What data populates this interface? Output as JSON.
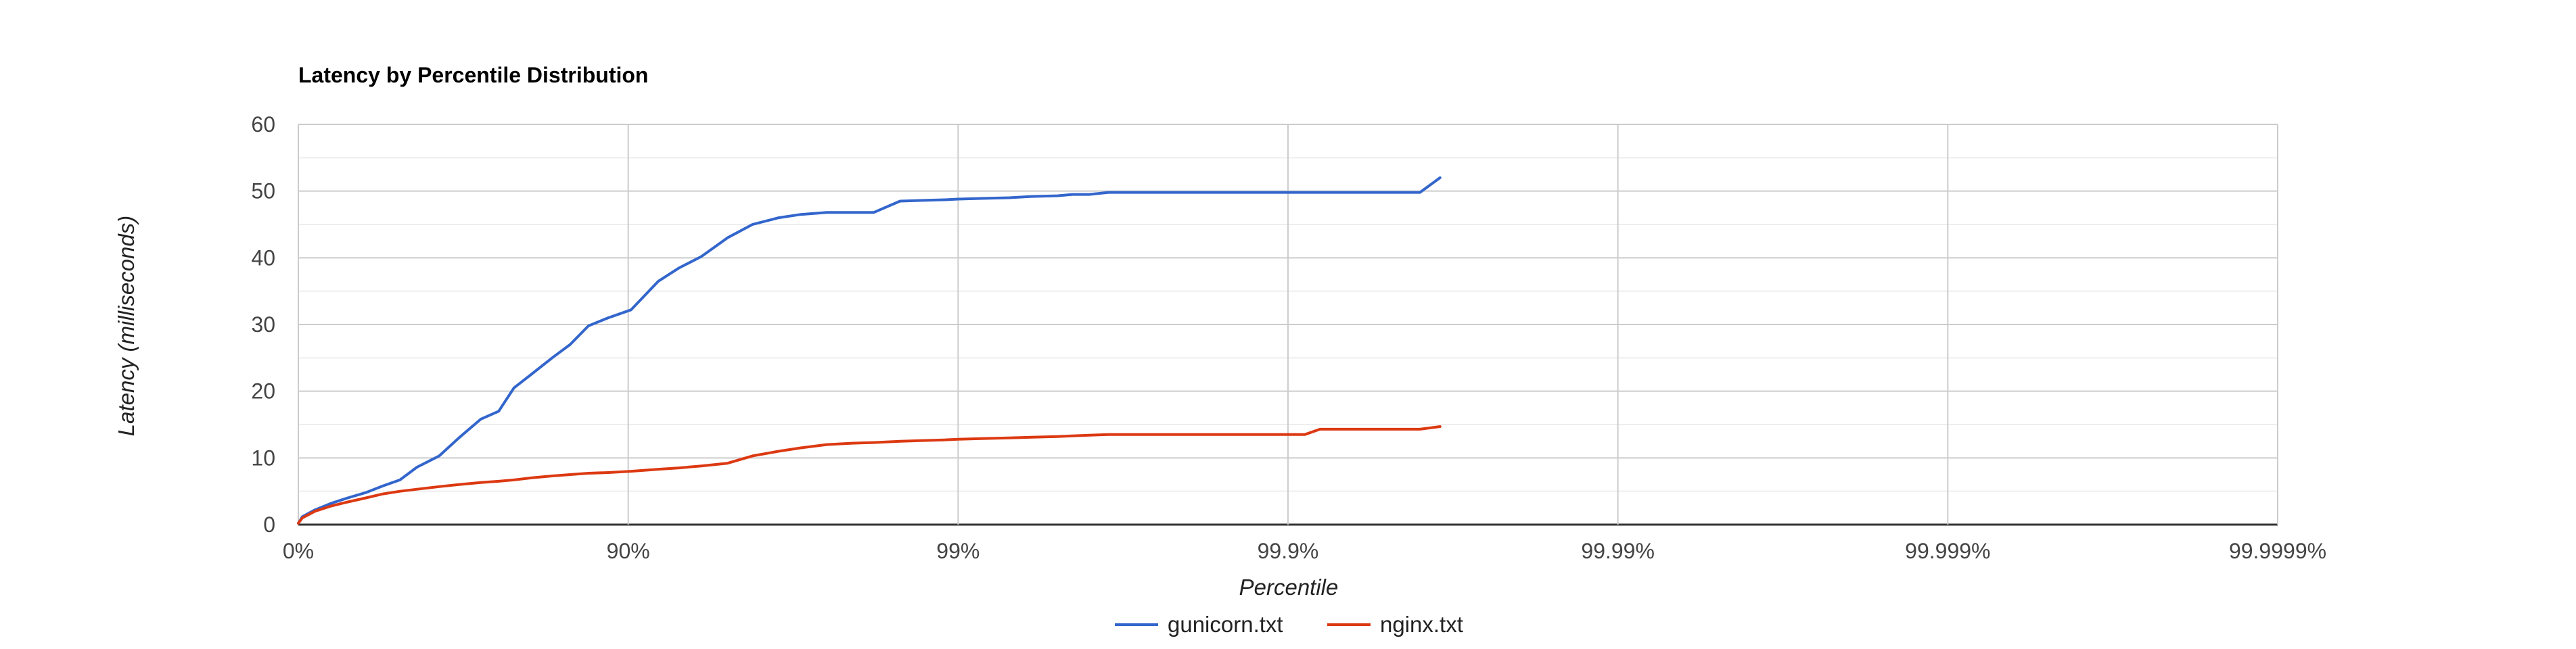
{
  "chart_data": {
    "type": "line",
    "title": "Latency by Percentile Distribution",
    "xlabel": "Percentile",
    "ylabel": "Latency (milliseconds)",
    "x_scale": "log-nines",
    "x_ticks": [
      {
        "value": 0,
        "label": "0%"
      },
      {
        "value": 90,
        "label": "90%"
      },
      {
        "value": 99,
        "label": "99%"
      },
      {
        "value": 99.9,
        "label": "99.9%"
      },
      {
        "value": 99.99,
        "label": "99.99%"
      },
      {
        "value": 99.999,
        "label": "99.999%"
      },
      {
        "value": 99.9999,
        "label": "99.9999%"
      }
    ],
    "y_ticks": [
      0,
      10,
      20,
      30,
      40,
      50,
      60
    ],
    "ylim": [
      0,
      60
    ],
    "grid": true,
    "legend": "bottom",
    "series": [
      {
        "name": "gunicorn.txt",
        "color": "#3366cc",
        "x": [
          0,
          2.8,
          10.9,
          20.6,
          29.2,
          37.6,
          44.6,
          50.8,
          56.3,
          62.6,
          67.4,
          72.0,
          75.3,
          77.8,
          80.3,
          83.0,
          85.0,
          86.8,
          88.5,
          90.2,
          91.9,
          93.0,
          94.0,
          95.0,
          95.8,
          96.5,
          97.0,
          97.5,
          97.9,
          98.2,
          98.5,
          98.7,
          98.9,
          99.0,
          99.15,
          99.3,
          99.4,
          99.5,
          99.55,
          99.6,
          99.65,
          99.7,
          99.75,
          99.8,
          99.82,
          99.84,
          99.86,
          99.87,
          99.88,
          99.9,
          99.911,
          99.92,
          99.93,
          99.94,
          99.948,
          99.955,
          99.9602,
          99.9654
        ],
        "y": [
          0.2,
          1.2,
          2.2,
          3.2,
          4.0,
          4.8,
          5.8,
          6.7,
          8.6,
          10.3,
          13.0,
          15.8,
          17.0,
          20.5,
          22.5,
          25.0,
          27.0,
          29.8,
          31.0,
          32.2,
          36.5,
          38.5,
          40.2,
          43.0,
          45.0,
          46.0,
          46.5,
          46.8,
          46.8,
          46.8,
          48.5,
          48.6,
          48.7,
          48.8,
          48.9,
          49.0,
          49.2,
          49.3,
          49.5,
          49.5,
          49.8,
          49.8,
          49.8,
          49.8,
          49.8,
          49.8,
          49.8,
          49.8,
          49.8,
          49.8,
          49.8,
          49.8,
          49.8,
          49.8,
          49.8,
          49.8,
          49.8,
          52.0
        ]
      },
      {
        "name": "nginx.txt",
        "color": "#dc3912",
        "x": [
          0,
          2.8,
          10.9,
          20.6,
          29.2,
          37.6,
          44.6,
          50.8,
          56.3,
          62.6,
          67.4,
          72.0,
          75.3,
          77.8,
          80.3,
          83.0,
          85.0,
          86.8,
          88.5,
          90.2,
          91.9,
          93.0,
          94.0,
          95.0,
          95.8,
          96.5,
          97.0,
          97.5,
          97.9,
          98.2,
          98.5,
          98.7,
          98.9,
          99.0,
          99.15,
          99.3,
          99.4,
          99.5,
          99.55,
          99.6,
          99.65,
          99.7,
          99.75,
          99.8,
          99.82,
          99.84,
          99.86,
          99.87,
          99.88,
          99.9,
          99.911,
          99.92,
          99.93,
          99.94,
          99.948,
          99.955,
          99.9602,
          99.9654
        ],
        "y": [
          0.2,
          1.0,
          2.0,
          2.8,
          3.4,
          4.0,
          4.6,
          5.0,
          5.3,
          5.7,
          6.0,
          6.3,
          6.5,
          6.7,
          7.0,
          7.3,
          7.5,
          7.7,
          7.8,
          8.0,
          8.3,
          8.5,
          8.8,
          9.2,
          10.3,
          11.0,
          11.5,
          12.0,
          12.2,
          12.3,
          12.5,
          12.6,
          12.7,
          12.8,
          12.9,
          13.0,
          13.1,
          13.2,
          13.3,
          13.4,
          13.5,
          13.5,
          13.5,
          13.5,
          13.5,
          13.5,
          13.5,
          13.5,
          13.5,
          13.5,
          13.5,
          14.3,
          14.3,
          14.3,
          14.3,
          14.3,
          14.3,
          14.7
        ]
      }
    ]
  }
}
